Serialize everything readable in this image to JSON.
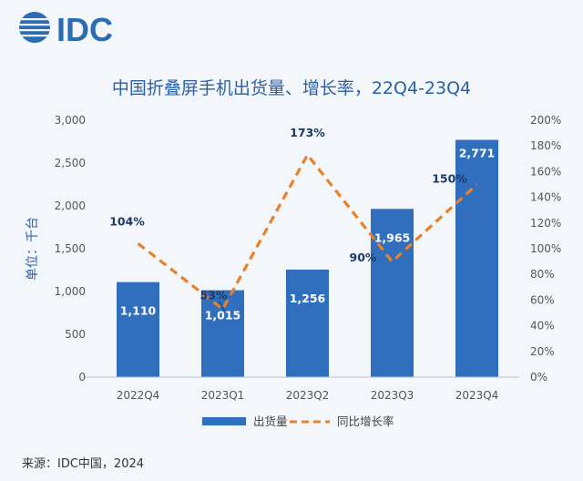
{
  "logo": {
    "text": "IDC"
  },
  "chart_data": {
    "type": "bar",
    "title": "中国折叠屏手机出货量、增长率，22Q4-23Q4",
    "categories": [
      "2022Q4",
      "2023Q1",
      "2023Q2",
      "2023Q3",
      "2023Q4"
    ],
    "series": [
      {
        "name": "出货量",
        "type": "bar",
        "axis": "left",
        "values": [
          1110,
          1015,
          1256,
          1965,
          2771
        ],
        "labels": [
          "1,110",
          "1,015",
          "1,256",
          "1,965",
          "2,771"
        ],
        "color": "#2f6fbd"
      },
      {
        "name": "同比增长率",
        "type": "line",
        "axis": "right",
        "values": [
          104,
          53,
          173,
          90,
          150
        ],
        "labels": [
          "104%",
          "53%",
          "173%",
          "90%",
          "150%"
        ],
        "color": "#e8812b"
      }
    ],
    "ylabel": "单位：千台",
    "ylim": [
      0,
      3000
    ],
    "y_ticks": [
      "0",
      "500",
      "1,000",
      "1,500",
      "2,000",
      "2,500",
      "3,000"
    ],
    "y2lim": [
      0,
      200
    ],
    "y2_ticks": [
      "0%",
      "20%",
      "40%",
      "60%",
      "80%",
      "100%",
      "120%",
      "140%",
      "160%",
      "180%",
      "200%"
    ],
    "legend_position": "bottom",
    "grid": false
  },
  "source": "来源：IDC中国，2024"
}
